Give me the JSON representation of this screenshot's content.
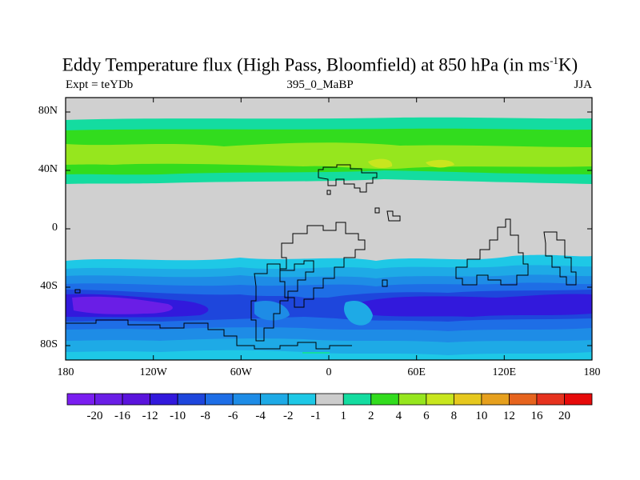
{
  "title": {
    "main": "Eddy Temperature flux (High Pass, Bloomfield) at 850 hPa (in ms",
    "sup": "-1",
    "tail": "K)"
  },
  "subtitle": {
    "left": "Expt = teYDb",
    "center": "395_0_MaBP",
    "right": "JJA"
  },
  "map": {
    "type": "contour-map",
    "variable": "Eddy Temperature flux (High Pass, Bloomfield)",
    "level": "850 hPa",
    "units": "ms-1K",
    "season": "JJA",
    "experiment": "teYDb",
    "period": "395_0_MaBP",
    "lon_range": [
      -180,
      180
    ],
    "lat_range": [
      -90,
      90
    ],
    "y_ticks": [
      {
        "lat": 80,
        "label": "80N"
      },
      {
        "lat": 40,
        "label": "40N"
      },
      {
        "lat": 0,
        "label": "0"
      },
      {
        "lat": -40,
        "label": "40S"
      },
      {
        "lat": -80,
        "label": "80S"
      }
    ],
    "x_ticks": [
      {
        "lon": -180,
        "label": "180"
      },
      {
        "lon": -120,
        "label": "120W"
      },
      {
        "lon": -60,
        "label": "60W"
      },
      {
        "lon": 0,
        "label": "0"
      },
      {
        "lon": 60,
        "label": "60E"
      },
      {
        "lon": 120,
        "label": "120E"
      },
      {
        "lon": 180,
        "label": "180"
      }
    ]
  },
  "colorbar": {
    "labels": [
      "-20",
      "-16",
      "-12",
      "-10",
      "-8",
      "-6",
      "-4",
      "-2",
      "-1",
      "1",
      "2",
      "4",
      "6",
      "8",
      "10",
      "12",
      "16",
      "20"
    ],
    "colors": [
      "#7a1ef0",
      "#6a1ee6",
      "#5a14dc",
      "#3219dc",
      "#1e46dc",
      "#1e6ee6",
      "#1e8ce6",
      "#1eaae6",
      "#1ec8e6",
      "#cccccc",
      "#14dca0",
      "#32dc1e",
      "#96e61e",
      "#c8e61e",
      "#e6c81e",
      "#e6a01e",
      "#e6641e",
      "#e6321e",
      "#e60a0a"
    ]
  },
  "palette": {
    "neutral": "#d0d0d0",
    "cyan": "#1ec8e6",
    "lightblue": "#1eaae6",
    "blue": "#1e8ce6",
    "midblue": "#1e6ee6",
    "deepblue": "#1e46dc",
    "navy": "#3219dc",
    "purple": "#6a1ee6",
    "teal": "#14dca0",
    "green": "#32dc1e",
    "lime": "#96e61e",
    "yellow": "#c8e61e"
  }
}
